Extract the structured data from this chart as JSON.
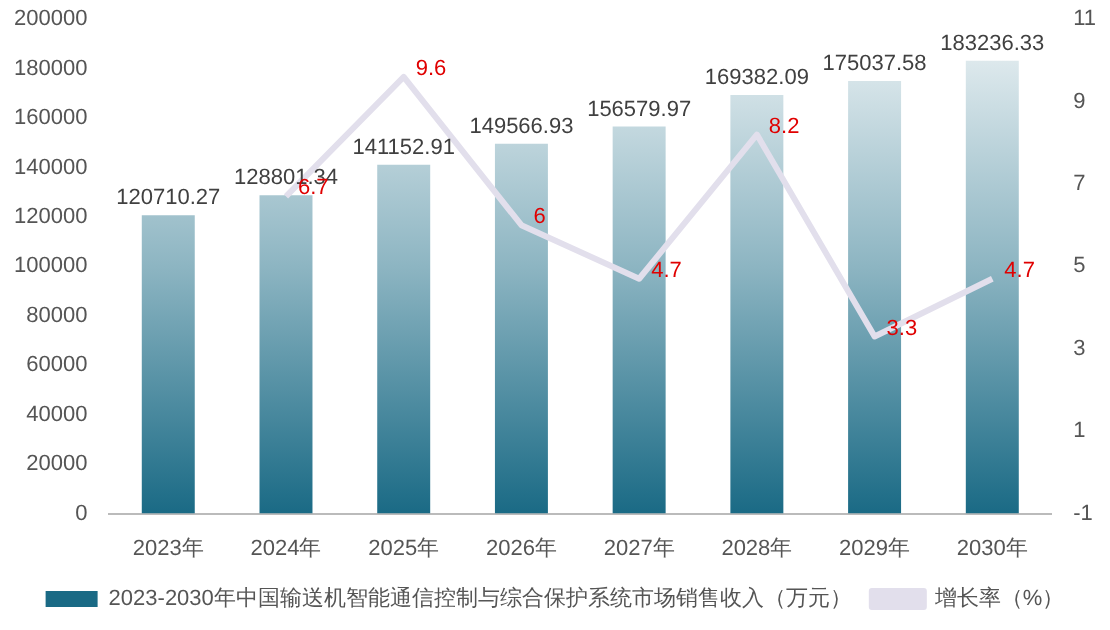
{
  "chart_data": {
    "type": "bar",
    "categories": [
      "2023年",
      "2024年",
      "2025年",
      "2026年",
      "2027年",
      "2028年",
      "2029年",
      "2030年"
    ],
    "series": [
      {
        "name": "2023-2030年中国输送机智能通信控制与综合保护系统市场销售收入（万元）",
        "color": "#1a6a85",
        "values": [
          120710.27,
          128801.34,
          141152.91,
          149566.93,
          156579.97,
          169382.09,
          175037.58,
          183236.33
        ]
      },
      {
        "name": "增长率（%）",
        "type": "line",
        "axis": "y2",
        "color": "#e2dfec",
        "values": [
          null,
          6.7,
          9.6,
          6,
          4.7,
          8.2,
          3.3,
          4.7
        ]
      }
    ],
    "ylim": [
      0,
      200000
    ],
    "yticks": [
      0,
      20000,
      40000,
      60000,
      80000,
      100000,
      120000,
      140000,
      160000,
      180000,
      200000
    ],
    "y2lim": [
      -1,
      11
    ],
    "y2ticks": [
      -1,
      1,
      3,
      5,
      7,
      9,
      11
    ],
    "data_labels": true,
    "grid": false,
    "legend": "bottom",
    "marker": "none",
    "line_style": "solid"
  }
}
